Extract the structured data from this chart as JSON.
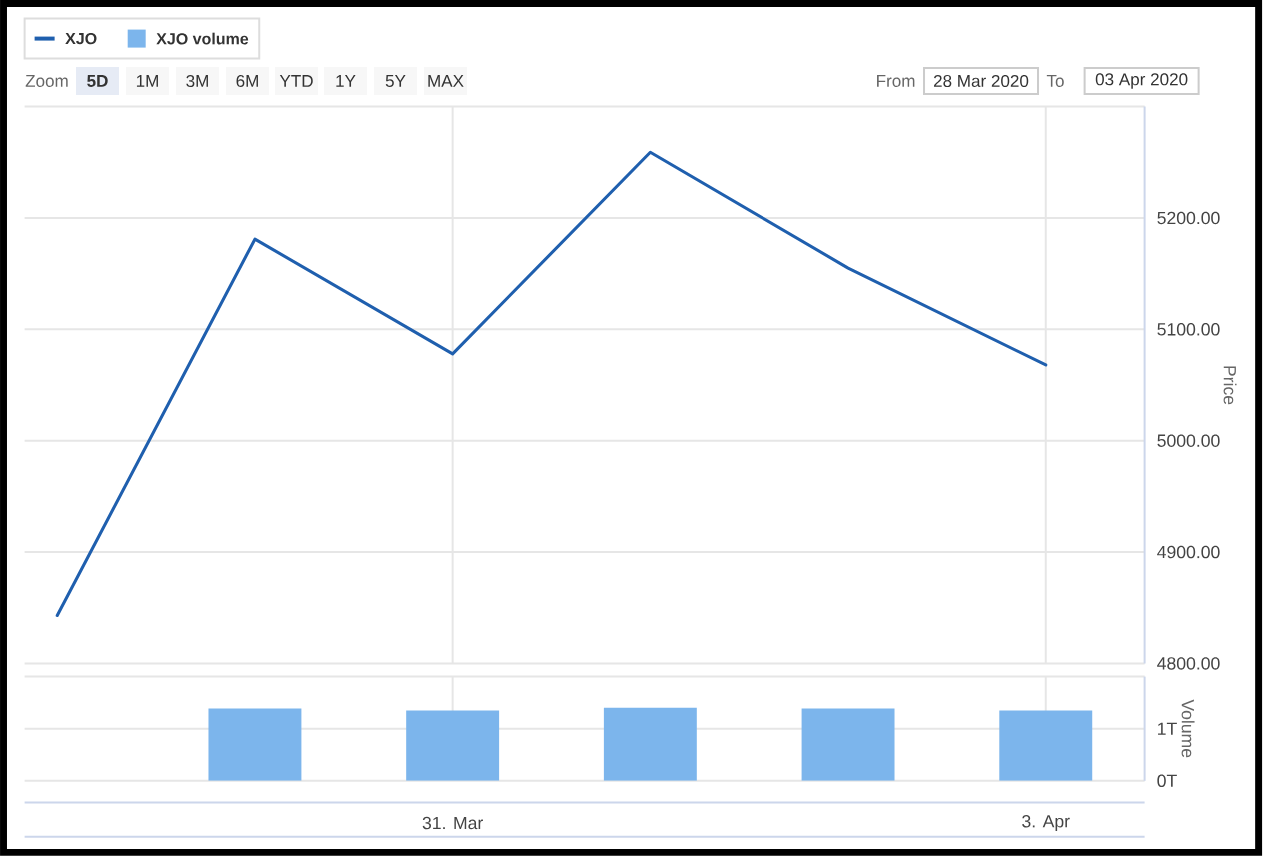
{
  "chart_data": [
    {
      "type": "line",
      "categories": [
        null,
        null,
        null,
        null,
        null,
        null
      ],
      "series": [
        {
          "name": "XJO",
          "color": "#1f5fae",
          "values": [
            4843,
            5181,
            5078,
            5259,
            5155,
            5068
          ]
        }
      ],
      "ylabel": "Price",
      "ylim": [
        4800,
        5300
      ],
      "yticks": [
        {
          "value": 4800,
          "label": "4800.00"
        },
        {
          "value": 4900,
          "label": "4900.00"
        },
        {
          "value": 5000,
          "label": "5000.00"
        },
        {
          "value": 5100,
          "label": "5100.00"
        },
        {
          "value": 5200,
          "label": "5200.00"
        },
        {
          "value": 5300,
          "label": null
        }
      ],
      "grid": true,
      "legend": "top left",
      "tick_labels": "y",
      "annotations": [
        "Zoom",
        "5D",
        "1M",
        "3M",
        "6M",
        "YTD",
        "1Y",
        "5Y",
        "MAX",
        "From",
        "28 Mar 2020",
        "To",
        "03 Apr 2020"
      ]
    },
    {
      "type": "bar",
      "categories": [
        null,
        null,
        "31. Mar",
        null,
        null,
        "3. Apr"
      ],
      "series": [
        {
          "name": "XJO volume",
          "color": "#7cb5ec",
          "values": [
            null,
            1.39,
            1.35,
            1.4,
            1.39,
            1.35
          ]
        }
      ],
      "ylabel": "Volume",
      "ylim": [
        0,
        2
      ],
      "yticks": [
        {
          "value": 0,
          "label": "0T"
        },
        {
          "value": 1,
          "label": "1T"
        },
        {
          "value": 2,
          "label": null
        }
      ],
      "grid": true,
      "legend": "top left"
    }
  ]
}
